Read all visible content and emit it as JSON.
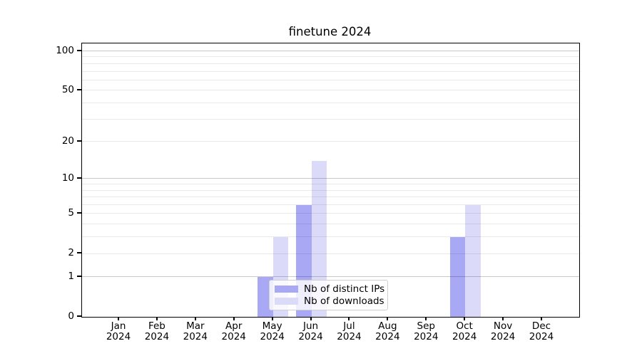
{
  "chart_data": {
    "type": "bar",
    "title": "finetune 2024",
    "categories": [
      "Jan",
      "Feb",
      "Mar",
      "Apr",
      "May",
      "Jun",
      "Jul",
      "Aug",
      "Sep",
      "Oct",
      "Nov",
      "Dec"
    ],
    "category_year": "2024",
    "series": [
      {
        "name": "Nb of distinct IPs",
        "color": "#a8a8f4",
        "values": [
          0,
          0,
          0,
          0,
          1,
          6,
          0,
          0,
          0,
          3,
          0,
          0
        ]
      },
      {
        "name": "Nb of downloads",
        "color": "#dbdbf9",
        "values": [
          0,
          0,
          0,
          0,
          3,
          14,
          0,
          0,
          0,
          6,
          0,
          0
        ]
      }
    ],
    "yscale": "log1p",
    "ylim": [
      0,
      114
    ],
    "y_ticks": [
      0,
      1,
      2,
      5,
      10,
      20,
      50,
      100
    ],
    "y_major_grid": [
      1,
      10,
      100
    ],
    "y_minor_grid": [
      2,
      3,
      4,
      5,
      6,
      7,
      8,
      9,
      20,
      30,
      40,
      50,
      60,
      70,
      80,
      90
    ],
    "grid": true,
    "legend_position": "lower-center-inside",
    "colors": {
      "background": "#ffffff",
      "spine": "#000000",
      "text": "#000000",
      "legend_border": "#cfcfcf"
    }
  }
}
